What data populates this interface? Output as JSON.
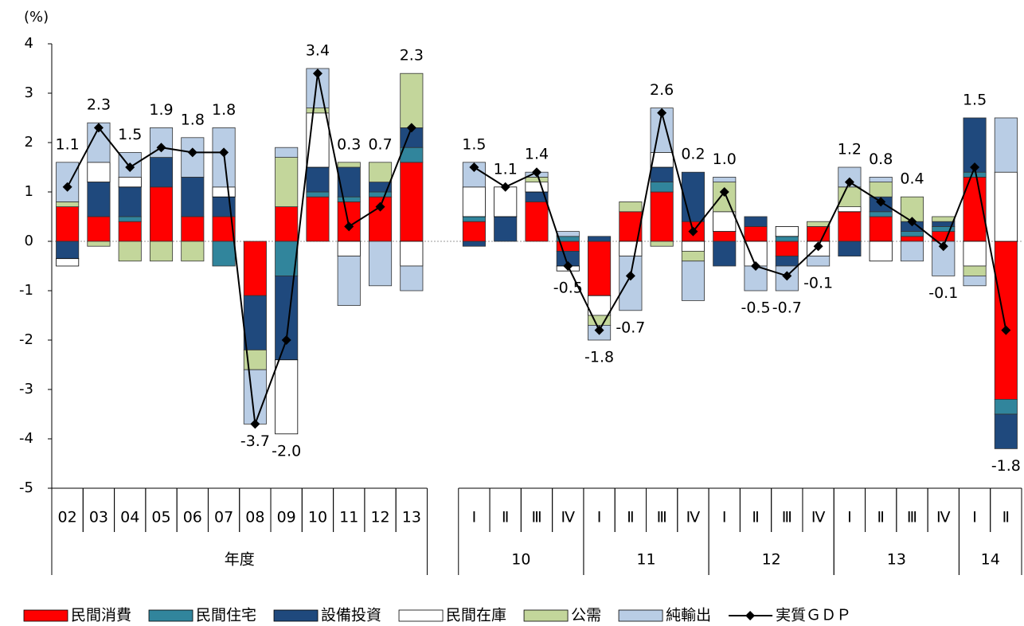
{
  "chart_data": {
    "type": "bar",
    "stacked": true,
    "y_unit": "(%)",
    "categories": [
      "02",
      "03",
      "04",
      "05",
      "06",
      "07",
      "08",
      "09",
      "10",
      "11",
      "12",
      "13",
      null,
      "Ⅰ",
      "Ⅱ",
      "Ⅲ",
      "Ⅳ",
      "Ⅰ",
      "Ⅱ",
      "Ⅲ",
      "Ⅳ",
      "Ⅰ",
      "Ⅱ",
      "Ⅲ",
      "Ⅳ",
      "Ⅰ",
      "Ⅱ",
      "Ⅲ",
      "Ⅳ",
      "Ⅰ",
      "Ⅱ"
    ],
    "groups": [
      "年度",
      "年度",
      "年度",
      "年度",
      "年度",
      "年度",
      "年度",
      "年度",
      "年度",
      "年度",
      "年度",
      "年度",
      null,
      "10",
      "10",
      "10",
      "10",
      "11",
      "11",
      "11",
      "11",
      "12",
      "12",
      "12",
      "12",
      "13",
      "13",
      "13",
      "13",
      "14",
      "14"
    ],
    "ylim": [
      -5,
      4
    ],
    "yticks": [
      -5,
      -4,
      -3,
      -2,
      -1,
      0,
      1,
      2,
      3,
      4
    ],
    "series": [
      {
        "name": "民間消費",
        "color": "#ff0000",
        "values": [
          0.7,
          0.5,
          0.4,
          1.1,
          0.5,
          0.5,
          -1.1,
          0.7,
          0.9,
          0.8,
          0.9,
          1.6,
          null,
          0.4,
          0,
          0.8,
          -0.2,
          -1.1,
          0.6,
          1.0,
          0.4,
          0.2,
          0.3,
          -0.3,
          0.3,
          0.6,
          0.5,
          0.1,
          0.2,
          1.3,
          -3.2
        ]
      },
      {
        "name": "民間住宅",
        "color": "#31859c",
        "values": [
          0,
          0,
          0.1,
          0,
          0,
          -0.5,
          0,
          -0.7,
          0.1,
          0.1,
          0.1,
          0.3,
          null,
          0.1,
          0,
          0,
          0.1,
          0,
          0,
          0.2,
          0,
          0,
          0,
          0.1,
          0,
          0,
          0.1,
          0.1,
          0.1,
          0.1,
          -0.3
        ]
      },
      {
        "name": "設備投資",
        "color": "#1f497d",
        "values": [
          -0.35,
          0.7,
          0.6,
          0.6,
          0.8,
          0.4,
          -1.1,
          -1.7,
          0.5,
          0.6,
          0.2,
          0.4,
          null,
          -0.1,
          0.5,
          0.2,
          -0.3,
          0.1,
          0,
          0.3,
          1.0,
          -0.5,
          0.2,
          -0.2,
          0,
          -0.3,
          0.3,
          0.2,
          0.1,
          1.1,
          -0.7
        ]
      },
      {
        "name": "民間在庫",
        "color": "#ffffff",
        "values": [
          -0.15,
          0.4,
          0.2,
          0,
          0,
          0.2,
          0,
          -1.5,
          1.1,
          -0.3,
          0,
          -0.5,
          null,
          0.6,
          0.6,
          0.2,
          -0.1,
          -0.4,
          -0.3,
          0.3,
          -0.2,
          0.4,
          -0.5,
          0.2,
          -0.3,
          0.1,
          -0.4,
          0,
          0,
          -0.5,
          1.4
        ]
      },
      {
        "name": "公需",
        "color": "#c3d69b",
        "values": [
          0.1,
          -0.1,
          -0.4,
          -0.4,
          -0.4,
          0,
          -0.4,
          1.0,
          0.1,
          0.1,
          0.4,
          1.1,
          null,
          0,
          0,
          0.1,
          0,
          -0.2,
          0.2,
          -0.1,
          -0.2,
          0.6,
          0,
          0,
          0.1,
          0.4,
          0.3,
          0.5,
          0.1,
          -0.2,
          0
        ]
      },
      {
        "name": "純輸出",
        "color": "#b9cde5",
        "values": [
          0.8,
          0.8,
          0.5,
          0.6,
          0.8,
          1.2,
          -1.1,
          0.2,
          0.8,
          -1.0,
          -0.9,
          -0.5,
          null,
          0.5,
          0,
          0.1,
          0.1,
          -0.3,
          -1.1,
          0.9,
          -0.8,
          0.1,
          -0.5,
          -0.5,
          -0.2,
          0.4,
          0.1,
          -0.4,
          -0.7,
          -0.2,
          1.1
        ]
      }
    ],
    "line": {
      "name": "実質ＧＤＰ",
      "color": "#000000",
      "label_color": "#000000",
      "negative_label_color": "#ff0000",
      "values": [
        1.1,
        2.3,
        1.5,
        1.9,
        1.8,
        1.8,
        -3.7,
        -2.0,
        3.4,
        0.3,
        0.7,
        2.3,
        null,
        1.5,
        1.1,
        1.4,
        -0.5,
        -1.8,
        -0.7,
        2.6,
        0.2,
        1.0,
        -0.5,
        -0.7,
        -0.1,
        1.2,
        0.8,
        0.4,
        -0.1,
        1.5,
        -1.8
      ],
      "value_labels": [
        "1.1",
        "2.3",
        "1.5",
        "1.9",
        "1.8",
        "1.8",
        "-3.7",
        "-2.0",
        "3.4",
        "0.3",
        "0.7",
        "2.3",
        null,
        "1.5",
        "1.1",
        "1.4",
        "-0.5",
        "-1.8",
        "-0.7",
        "2.6",
        "0.2",
        "1.0",
        "-0.5",
        "-0.7",
        "-0.1",
        "1.2",
        "0.8",
        "0.4",
        "-0.1",
        "1.5",
        "-1.8"
      ]
    }
  }
}
